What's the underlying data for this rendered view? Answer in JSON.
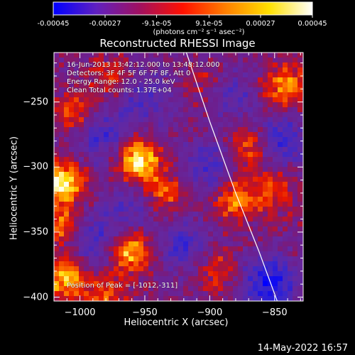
{
  "colorbar": {
    "tick_labels": [
      "-0.00045",
      "-0.00027",
      "-9.1e-05",
      "9.1e-05",
      "0.00027",
      "0.00045"
    ],
    "tick_values": [
      -0.00045,
      -0.00027,
      -9.1e-05,
      9.1e-05,
      0.00027,
      0.00045
    ],
    "range": [
      -0.00045,
      0.00045
    ],
    "unit_label": "(photons cm⁻² s⁻¹ asec⁻²)",
    "colors": [
      "#0000ff",
      "#6020c0",
      "#a01060",
      "#ff1000",
      "#ff8000",
      "#ffe000",
      "#ffffff"
    ]
  },
  "footer": {
    "date": "14-May-2022 16:57"
  },
  "chart_data": {
    "type": "heatmap",
    "title": "Reconstructed RHESSI Image",
    "xlabel": "Heliocentric X (arcsec)",
    "ylabel": "Heliocentric Y (arcsec)",
    "xlim": [
      -1020,
      -828
    ],
    "ylim": [
      -403,
      -212
    ],
    "x_ticks": [
      -1000,
      -950,
      -900,
      -850
    ],
    "y_ticks": [
      -250,
      -300,
      -350,
      -400
    ],
    "x_tick_labels": [
      "−1000",
      "−950",
      "−900",
      "−850"
    ],
    "y_tick_labels": [
      "−250",
      "−300",
      "−350",
      "−400"
    ],
    "info_lines": [
      "16-Jun-2013 13:42:12.000 to 13:48:12.000",
      "Detectors: 3F 4F 5F 6F 7F 8F, Att 0",
      "Energy Range: 12.0 - 25.0 keV",
      "Clean     Total counts: 1.37E+04"
    ],
    "peak_label": "Position of Peak = [-1012,-311]",
    "limb_curve": [
      [
        -918,
        -212
      ],
      [
        -900,
        -265
      ],
      [
        -880,
        -320
      ],
      [
        -862,
        -365
      ],
      [
        -848,
        -403
      ]
    ],
    "bright_regions": [
      {
        "x": -955,
        "y": -295,
        "level": 1.0
      },
      {
        "x": -1013,
        "y": -312,
        "level": 0.95
      },
      {
        "x": -960,
        "y": -365,
        "level": 0.85
      },
      {
        "x": -1012,
        "y": -385,
        "level": 0.8
      },
      {
        "x": -842,
        "y": -238,
        "level": 0.75
      },
      {
        "x": -870,
        "y": -285,
        "level": 0.6
      },
      {
        "x": -880,
        "y": -325,
        "level": 0.7
      },
      {
        "x": -935,
        "y": -320,
        "level": 0.55
      },
      {
        "x": -1002,
        "y": -260,
        "level": 0.6
      },
      {
        "x": -895,
        "y": -380,
        "level": 0.45
      },
      {
        "x": -1015,
        "y": -345,
        "level": 0.65
      },
      {
        "x": -850,
        "y": -318,
        "level": 0.5
      },
      {
        "x": -975,
        "y": -232,
        "level": 0.4
      },
      {
        "x": -905,
        "y": -233,
        "level": 0.3
      },
      {
        "x": -980,
        "y": -400,
        "level": 0.55
      }
    ],
    "dark_regions": [
      {
        "x": -985,
        "y": -275,
        "level": -0.6
      },
      {
        "x": -900,
        "y": -300,
        "level": -0.55
      },
      {
        "x": -855,
        "y": -390,
        "level": -0.85
      },
      {
        "x": -920,
        "y": -360,
        "level": -0.5
      },
      {
        "x": -950,
        "y": -245,
        "level": -0.45
      },
      {
        "x": -990,
        "y": -355,
        "level": -0.5
      },
      {
        "x": -960,
        "y": -330,
        "level": -0.4
      },
      {
        "x": -845,
        "y": -280,
        "level": -0.6
      },
      {
        "x": -880,
        "y": -245,
        "level": -0.35
      }
    ]
  }
}
